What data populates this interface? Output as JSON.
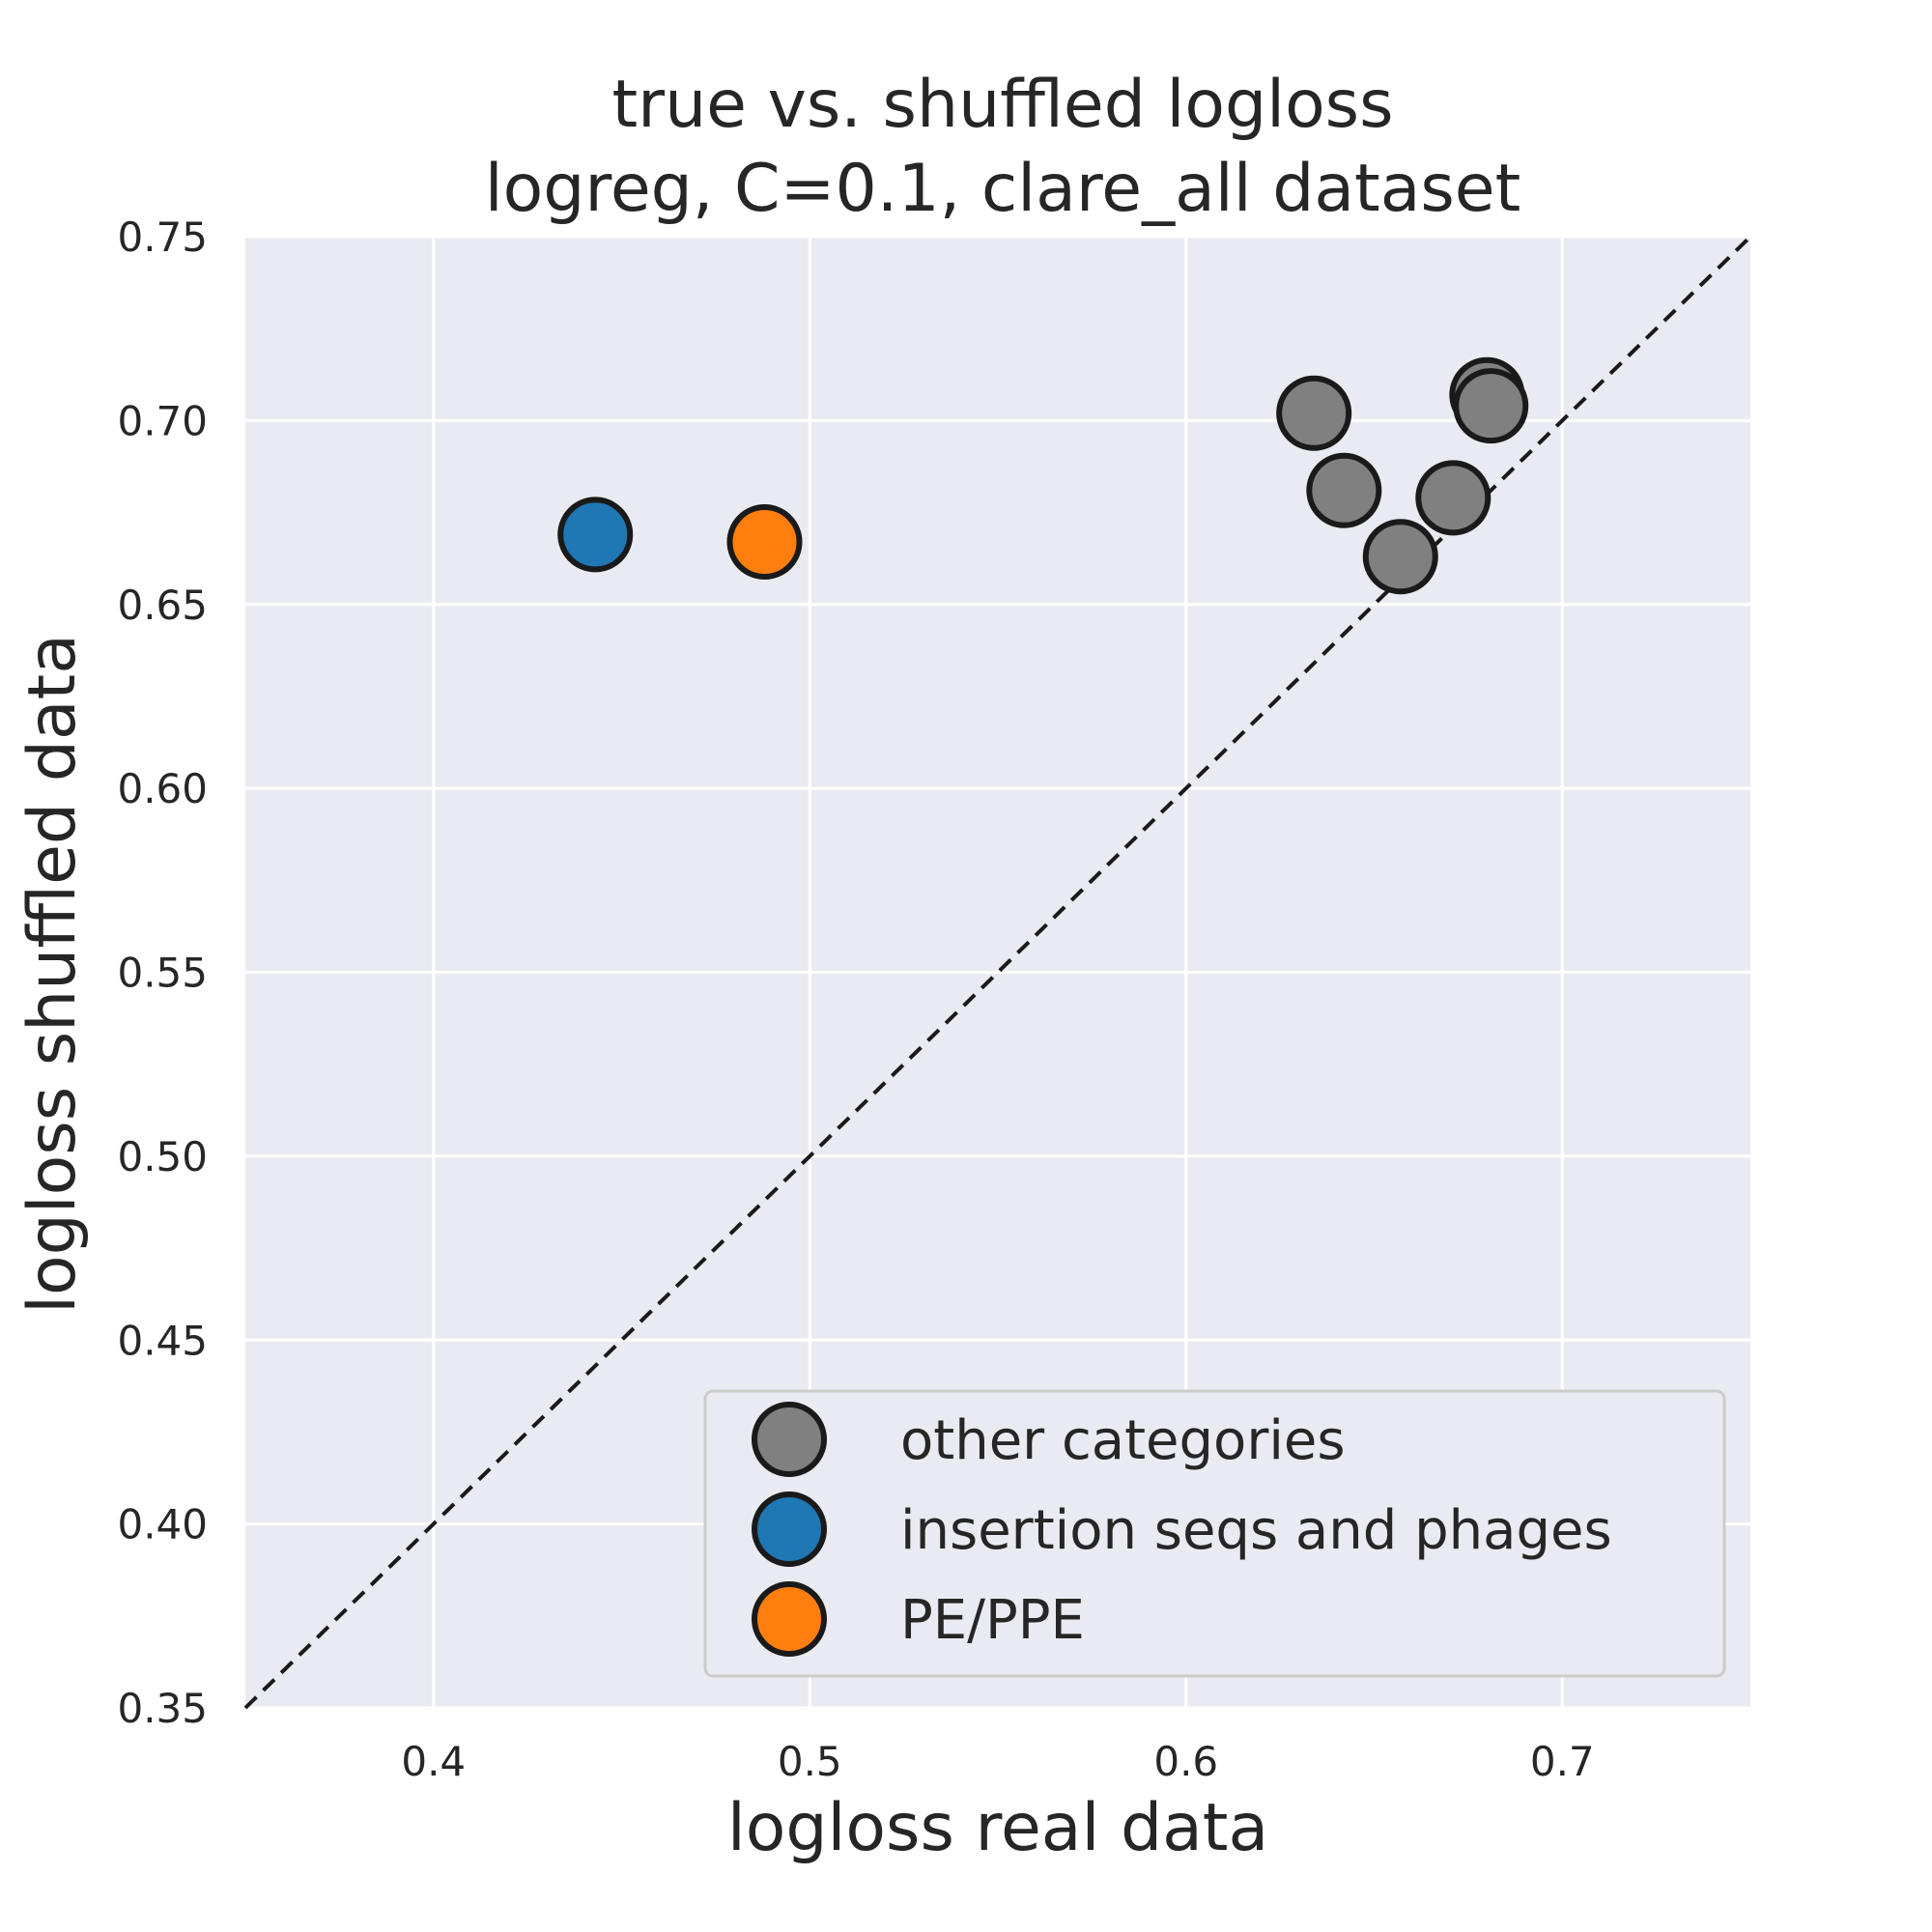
{
  "chart_data": {
    "type": "scatter",
    "title_lines": [
      "true vs. shuffled logloss",
      "logreg, C=0.1, clare_all dataset"
    ],
    "xlabel": "logloss real data",
    "ylabel": "logloss shuffled data",
    "xlim": [
      0.35,
      0.75
    ],
    "ylim": [
      0.35,
      0.75
    ],
    "xticks": [
      0.4,
      0.5,
      0.6,
      0.7
    ],
    "xtick_labels": [
      "0.4",
      "0.5",
      "0.6",
      "0.7"
    ],
    "yticks": [
      0.35,
      0.4,
      0.45,
      0.5,
      0.55,
      0.6,
      0.65,
      0.7,
      0.75
    ],
    "ytick_labels": [
      "0.35",
      "0.40",
      "0.45",
      "0.50",
      "0.55",
      "0.60",
      "0.65",
      "0.70",
      "0.75"
    ],
    "grid": true,
    "background": "#EAEAF2",
    "reference_line": {
      "from": [
        0.35,
        0.35
      ],
      "to": [
        0.75,
        0.75
      ],
      "style": "dashed",
      "color": "#1a1a1a"
    },
    "legend_position": "lower-right",
    "series": [
      {
        "name": "other categories",
        "color": "#808080",
        "points": [
          {
            "x": 0.634,
            "y": 0.702
          },
          {
            "x": 0.642,
            "y": 0.681
          },
          {
            "x": 0.657,
            "y": 0.663
          },
          {
            "x": 0.671,
            "y": 0.679
          },
          {
            "x": 0.68,
            "y": 0.707
          },
          {
            "x": 0.681,
            "y": 0.704
          }
        ]
      },
      {
        "name": "insertion seqs and phages",
        "color": "#1F77B4",
        "points": [
          {
            "x": 0.443,
            "y": 0.669
          }
        ]
      },
      {
        "name": "PE/PPE",
        "color": "#FF7F0E",
        "points": [
          {
            "x": 0.488,
            "y": 0.667
          }
        ]
      }
    ]
  }
}
